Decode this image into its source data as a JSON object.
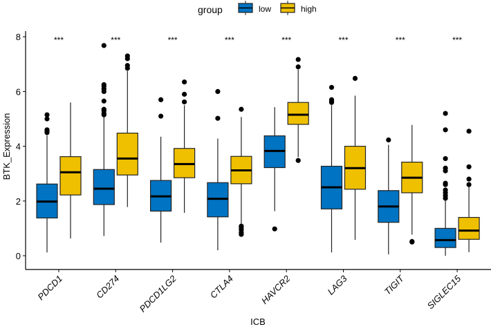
{
  "chart_data": {
    "type": "boxplot",
    "xlabel": "ICB",
    "ylabel": "BTK_Expression",
    "ylim": [
      -0.3,
      8
    ],
    "yticks": [
      0,
      2,
      4,
      6,
      8
    ],
    "legend": {
      "title": "group",
      "position": "top",
      "entries": [
        "low",
        "high"
      ]
    },
    "colors": {
      "low": "#0073C2",
      "high": "#EFC000"
    },
    "categories": [
      "PDCD1",
      "CD274",
      "PDCD1LG2",
      "CTLA4",
      "HAVCR2",
      "LAG3",
      "TIGIT",
      "SIGLEC15"
    ],
    "significance": [
      "***",
      "***",
      "***",
      "***",
      "***",
      "***",
      "***",
      "***"
    ],
    "series": [
      {
        "name": "low",
        "boxes": [
          {
            "min": 0.12,
            "q1": 1.38,
            "median": 1.98,
            "q3": 2.62,
            "max": 4.4,
            "outliers": [
              4.5,
              4.55,
              4.6,
              5.0,
              5.15
            ]
          },
          {
            "min": 0.72,
            "q1": 1.87,
            "median": 2.45,
            "q3": 3.15,
            "max": 5.1,
            "outliers": [
              5.15,
              5.2,
              5.3,
              5.35,
              5.65,
              6.0,
              6.1,
              6.2,
              6.25,
              7.68
            ]
          },
          {
            "min": 0.48,
            "q1": 1.63,
            "median": 2.17,
            "q3": 2.75,
            "max": 4.35,
            "outliers": [
              5.1,
              5.7
            ]
          },
          {
            "min": 0.2,
            "q1": 1.42,
            "median": 2.08,
            "q3": 2.67,
            "max": 4.28,
            "outliers": [
              5.02,
              6.0
            ]
          },
          {
            "min": 1.63,
            "q1": 3.22,
            "median": 3.83,
            "q3": 4.38,
            "max": 5.43,
            "outliers": [
              0.98
            ]
          },
          {
            "min": 0.12,
            "q1": 1.71,
            "median": 2.5,
            "q3": 3.27,
            "max": 5.5,
            "outliers": [
              5.6,
              5.65,
              5.7,
              6.15
            ]
          },
          {
            "min": 0.05,
            "q1": 1.22,
            "median": 1.8,
            "q3": 2.38,
            "max": 4.05,
            "outliers": [
              4.23
            ]
          },
          {
            "min": 0.0,
            "q1": 0.3,
            "median": 0.57,
            "q3": 1.0,
            "max": 2.05,
            "outliers": [
              2.1,
              2.2,
              2.3,
              2.4,
              2.6,
              2.65,
              3.1,
              3.2,
              3.55,
              4.6,
              5.2
            ]
          }
        ]
      },
      {
        "name": "high",
        "boxes": [
          {
            "min": 0.63,
            "q1": 2.22,
            "median": 3.05,
            "q3": 3.62,
            "max": 5.6,
            "outliers": []
          },
          {
            "min": 1.78,
            "q1": 2.95,
            "median": 3.55,
            "q3": 4.48,
            "max": 6.75,
            "outliers": [
              6.85,
              6.95,
              7.2,
              7.3
            ]
          },
          {
            "min": 1.57,
            "q1": 2.85,
            "median": 3.35,
            "q3": 3.92,
            "max": 5.5,
            "outliers": [
              5.62,
              5.9,
              6.35
            ]
          },
          {
            "min": 1.15,
            "q1": 2.63,
            "median": 3.12,
            "q3": 3.63,
            "max": 5.07,
            "outliers": [
              0.78,
              0.85,
              0.95,
              1.02,
              1.08,
              5.35
            ]
          },
          {
            "min": 3.6,
            "q1": 4.8,
            "median": 5.15,
            "q3": 5.6,
            "max": 6.8,
            "outliers": [
              3.48,
              6.9,
              7.17
            ]
          },
          {
            "min": 0.58,
            "q1": 2.43,
            "median": 3.2,
            "q3": 4.0,
            "max": 5.85,
            "outliers": [
              6.48
            ]
          },
          {
            "min": 0.77,
            "q1": 2.3,
            "median": 2.85,
            "q3": 3.42,
            "max": 4.78,
            "outliers": [
              0.5,
              0.52
            ]
          },
          {
            "min": 0.13,
            "q1": 0.6,
            "median": 0.92,
            "q3": 1.4,
            "max": 2.55,
            "outliers": [
              2.6,
              2.8,
              3.25,
              4.55
            ]
          }
        ]
      }
    ]
  }
}
